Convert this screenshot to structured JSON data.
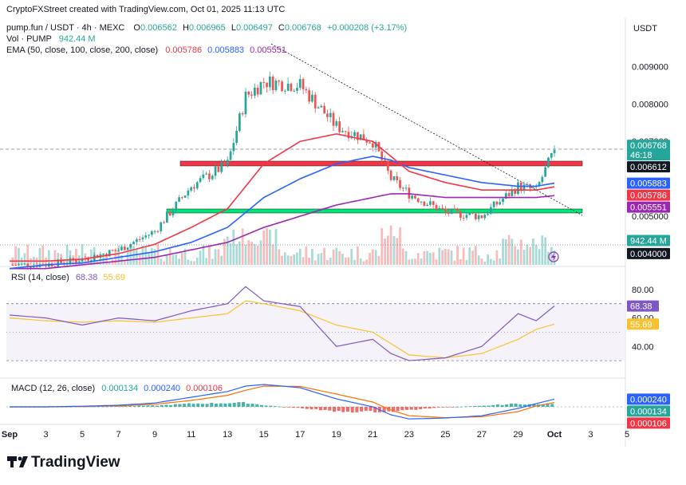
{
  "header": {
    "credit": "CryptoFXStreet created with TradingView.com, Oct 01, 2025 11:13 UTC",
    "symbol": "pump.fun / USDT · 4h · MEXC",
    "ohlc": [
      {
        "label": "O",
        "value": "0.006562"
      },
      {
        "label": "H",
        "value": "0.006965"
      },
      {
        "label": "L",
        "value": "0.006497"
      },
      {
        "label": "C",
        "value": "0.006768"
      }
    ],
    "change": "+0.000208 (+3.17%)",
    "volume_label": "Vol · PUMP",
    "volume_value": "942.44 M",
    "ema_label": "EMA (50, close, 100, close, 200, close)",
    "ema_values": [
      "0.005786",
      "0.005883",
      "0.005551"
    ],
    "currency": "USDT"
  },
  "colors": {
    "up": "#26a69a",
    "down": "#ef5350",
    "ema50": "#f23645",
    "ema100": "#2962ff",
    "ema200": "#9c27b0",
    "rsi": "#7e57c2",
    "rsi_ma": "#fbc02d",
    "macd": "#2962ff",
    "signal": "#ff6d00",
    "resistance": "#f23645",
    "support": "#00e676"
  },
  "price_axis": {
    "ticks": [
      "0.009000",
      "0.008000",
      "0.007000",
      "0.005000",
      "0.004000"
    ]
  },
  "price_tags": [
    {
      "name": "last-price",
      "lines": [
        "0.006768",
        "46:18"
      ],
      "value": 0.006768,
      "color": "#26a69a"
    },
    {
      "name": "resistance",
      "lines": [
        "0.006612"
      ],
      "value": 0.006612,
      "color": "#131722"
    },
    {
      "name": "ema100",
      "lines": [
        "0.005883"
      ],
      "value": 0.005883,
      "color": "#2962ff"
    },
    {
      "name": "ema50",
      "lines": [
        "0.005786"
      ],
      "value": 0.005786,
      "color": "#f23645"
    },
    {
      "name": "ema200",
      "lines": [
        "0.005551"
      ],
      "value": 0.005551,
      "color": "#9c27b0"
    },
    {
      "name": "volume",
      "lines": [
        "942.44 M"
      ],
      "value": 0.00435,
      "color": "#26a69a"
    },
    {
      "name": "level-4000",
      "lines": [
        "0.004000"
      ],
      "value": 0.004,
      "color": "#131722"
    }
  ],
  "rsi": {
    "label": "RSI (14, close)",
    "value": "68.38",
    "ma": "55.69",
    "ticks": [
      "80.00",
      "60.00",
      "40.00"
    ],
    "tags": [
      {
        "text": "68.38",
        "value": 68.38,
        "color": "#7e57c2"
      },
      {
        "text": "55.69",
        "value": 55.69,
        "color": "#fbc02d"
      }
    ]
  },
  "macd": {
    "label": "MACD (12, 26, close)",
    "values": [
      "0.000134",
      "0.000240",
      "0.000106"
    ],
    "tags": [
      {
        "text": "0.000240",
        "value": 0.00024,
        "color": "#2962ff"
      },
      {
        "text": "0.000134",
        "value": 0.000134,
        "color": "#26a69a"
      },
      {
        "text": "0.000106",
        "value": 0.000106,
        "color": "#f23645"
      }
    ]
  },
  "time_axis": {
    "labels": [
      "Sep",
      "3",
      "5",
      "7",
      "9",
      "11",
      "13",
      "15",
      "17",
      "19",
      "21",
      "23",
      "25",
      "27",
      "29",
      "Oct",
      "3",
      "5"
    ]
  },
  "brand": "TradingView",
  "chart_data": {
    "type": "candlestick",
    "x": [
      "Sep 1",
      "Sep 3",
      "Sep 5",
      "Sep 7",
      "Sep 9",
      "Sep 11",
      "Sep 13",
      "Sep 14",
      "Sep 15",
      "Sep 17",
      "Sep 19",
      "Sep 21",
      "Sep 22",
      "Sep 23",
      "Sep 25",
      "Sep 27",
      "Sep 29",
      "Sep 30",
      "Oct 1"
    ],
    "close": [
      0.0037,
      0.0037,
      0.00385,
      0.0041,
      0.0046,
      0.0058,
      0.0064,
      0.0082,
      0.0086,
      0.0085,
      0.0074,
      0.007,
      0.006,
      0.0056,
      0.0051,
      0.005,
      0.0058,
      0.0057,
      0.006768
    ],
    "ema50": [
      0.0038,
      0.0038,
      0.00385,
      0.004,
      0.00425,
      0.0047,
      0.0052,
      0.0058,
      0.0064,
      0.007,
      0.0072,
      0.007,
      0.0066,
      0.0062,
      0.0059,
      0.0057,
      0.0057,
      0.0057,
      0.005786
    ],
    "ema100": [
      0.0036,
      0.0037,
      0.00375,
      0.0039,
      0.00405,
      0.0043,
      0.0047,
      0.0051,
      0.0055,
      0.006,
      0.0064,
      0.0066,
      0.0065,
      0.0063,
      0.0061,
      0.0059,
      0.0058,
      0.0058,
      0.005883
    ],
    "ema200": [
      0.0036,
      0.0036,
      0.0037,
      0.0038,
      0.0039,
      0.0041,
      0.0043,
      0.0045,
      0.0047,
      0.005,
      0.0053,
      0.0055,
      0.0056,
      0.0056,
      0.0055,
      0.0055,
      0.0055,
      0.0055,
      0.005551
    ],
    "resistance": 0.006612,
    "support": 0.0049,
    "rsi": [
      62,
      60,
      55,
      60,
      58,
      65,
      70,
      82,
      72,
      68,
      40,
      45,
      35,
      30,
      32,
      40,
      63,
      58,
      68.38
    ],
    "rsi_ma": [
      60,
      58,
      57,
      58,
      57,
      60,
      63,
      72,
      70,
      65,
      55,
      50,
      42,
      34,
      32,
      35,
      45,
      52,
      55.69
    ],
    "macd": [
      0.0,
      0.0,
      2e-05,
      5e-05,
      0.00012,
      0.0003,
      0.00048,
      0.00065,
      0.0007,
      0.0006,
      0.00025,
      0.0,
      -0.00025,
      -0.00038,
      -0.00035,
      -0.00028,
      -5e-05,
      0.0001,
      0.00024
    ],
    "signal": [
      0.0,
      0.0,
      1e-05,
      3e-05,
      8e-05,
      0.0002,
      0.00036,
      0.00052,
      0.00065,
      0.00064,
      0.0004,
      0.00015,
      -0.0001,
      -0.00028,
      -0.00034,
      -0.00031,
      -0.00015,
      3e-05,
      0.000134
    ],
    "hist": [
      0.0,
      0.0,
      1e-05,
      2e-05,
      4e-05,
      0.0001,
      0.00012,
      0.00013,
      5e-05,
      -4e-05,
      -0.00015,
      -0.00015,
      -0.00015,
      -0.0001,
      -1e-05,
      3e-05,
      0.0001,
      7e-05,
      0.000106
    ],
    "ylim": [
      0.0037,
      0.0095
    ],
    "rsi_ylim": [
      20,
      90
    ],
    "macd_ylim": [
      -0.0005,
      0.0008
    ]
  }
}
